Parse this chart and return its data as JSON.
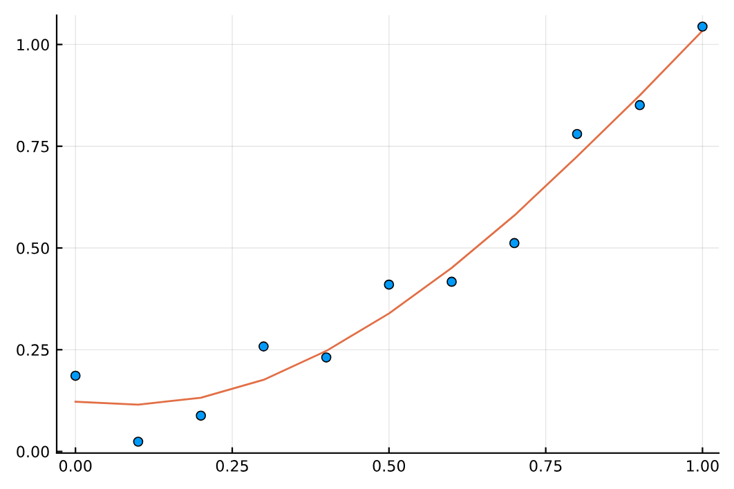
{
  "chart_data": {
    "type": "scatter",
    "xlim": [
      -0.03,
      1.026
    ],
    "ylim": [
      -0.004,
      1.072
    ],
    "xticks": [
      {
        "value": 0,
        "label": "0.00"
      },
      {
        "value": 0.25,
        "label": "0.25"
      },
      {
        "value": 0.5,
        "label": "0.50"
      },
      {
        "value": 0.75,
        "label": "0.75"
      },
      {
        "value": 1,
        "label": "1.00"
      }
    ],
    "yticks": [
      {
        "value": 0,
        "label": "0.00"
      },
      {
        "value": 0.25,
        "label": "0.25"
      },
      {
        "value": 0.5,
        "label": "0.50"
      },
      {
        "value": 0.75,
        "label": "0.75"
      },
      {
        "value": 1,
        "label": "1.00"
      }
    ],
    "grid": true,
    "series": [
      {
        "marker": "circle",
        "color": "#009af9",
        "x": [
          0,
          0.1,
          0.2,
          0.3,
          0.4,
          0.5,
          0.6,
          0.7,
          0.8,
          0.9,
          1.0
        ],
        "values": [
          0.186,
          0.024,
          0.088,
          0.258,
          0.231,
          0.41,
          0.417,
          0.512,
          0.78,
          0.851,
          1.044
        ]
      },
      {
        "type": "line",
        "color": "#e26f46",
        "x": [
          0,
          0.1,
          0.2,
          0.3,
          0.4,
          0.5,
          0.6,
          0.7,
          0.8,
          0.9,
          1.0
        ],
        "values": [
          0.122,
          0.115,
          0.132,
          0.176,
          0.247,
          0.339,
          0.451,
          0.58,
          0.725,
          0.875,
          1.034
        ]
      }
    ]
  }
}
